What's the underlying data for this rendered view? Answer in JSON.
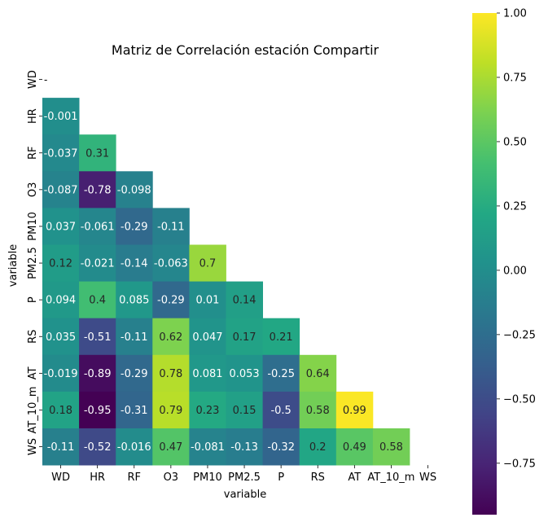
{
  "chart_data": {
    "type": "heatmap",
    "title": "Matriz de Correlación estación Compartir",
    "xlabel": "variable",
    "ylabel": "variable",
    "variables": [
      "WD",
      "HR",
      "RF",
      "O3",
      "PM10",
      "PM2.5",
      "P",
      "RS",
      "AT",
      "AT_10_m",
      "WS"
    ],
    "mask": "upper-triangle-and-diagonal",
    "values": [
      [],
      [
        -0.001
      ],
      [
        -0.037,
        0.31
      ],
      [
        -0.087,
        -0.78,
        -0.098
      ],
      [
        0.037,
        -0.061,
        -0.29,
        -0.11
      ],
      [
        0.12,
        -0.021,
        -0.14,
        -0.063,
        0.7
      ],
      [
        0.094,
        0.4,
        0.085,
        -0.29,
        0.01,
        0.14
      ],
      [
        0.035,
        -0.51,
        -0.11,
        0.62,
        0.047,
        0.17,
        0.21
      ],
      [
        -0.019,
        -0.89,
        -0.29,
        0.78,
        0.081,
        0.053,
        -0.25,
        0.64
      ],
      [
        0.18,
        -0.95,
        -0.31,
        0.79,
        0.23,
        0.15,
        -0.5,
        0.58,
        0.99
      ],
      [
        -0.11,
        -0.52,
        -0.016,
        0.47,
        -0.081,
        -0.13,
        -0.32,
        0.2,
        0.49,
        0.58
      ]
    ],
    "labels": [
      [],
      [
        "-0.001"
      ],
      [
        "-0.037",
        "0.31"
      ],
      [
        "-0.087",
        "-0.78",
        "-0.098"
      ],
      [
        "0.037",
        "-0.061",
        "-0.29",
        "-0.11"
      ],
      [
        "0.12",
        "-0.021",
        "-0.14",
        "-0.063",
        "0.7"
      ],
      [
        "0.094",
        "0.4",
        "0.085",
        "-0.29",
        "0.01",
        "0.14"
      ],
      [
        "0.035",
        "-0.51",
        "-0.11",
        "0.62",
        "0.047",
        "0.17",
        "0.21"
      ],
      [
        "-0.019",
        "-0.89",
        "-0.29",
        "0.78",
        "0.081",
        "0.053",
        "-0.25",
        "0.64"
      ],
      [
        "0.18",
        "-0.95",
        "-0.31",
        "0.79",
        "0.23",
        "0.15",
        "-0.5",
        "0.58",
        "0.99"
      ],
      [
        "-0.11",
        "-0.52",
        "-0.016",
        "0.47",
        "-0.081",
        "-0.13",
        "-0.32",
        "0.2",
        "0.49",
        "0.58"
      ]
    ],
    "colorbar": {
      "colormap": "viridis",
      "range": [
        -0.95,
        1.0
      ],
      "ticks": [
        -0.75,
        -0.5,
        -0.25,
        0.0,
        0.25,
        0.5,
        0.75,
        1.0
      ],
      "tick_labels": [
        "−0.75",
        "−0.50",
        "−0.25",
        "0.00",
        "0.25",
        "0.50",
        "0.75",
        "1.00"
      ]
    },
    "grid": false,
    "legend": "colorbar-right",
    "empty_cell_label": "-"
  }
}
